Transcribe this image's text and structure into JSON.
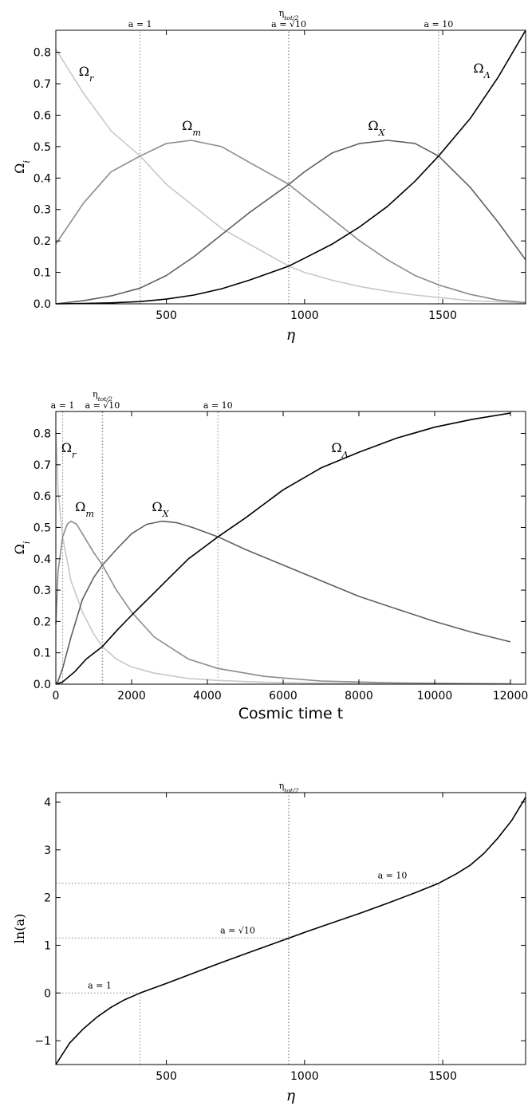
{
  "chart_data": [
    {
      "type": "line",
      "xlabel": "η",
      "ylabel": "Ω_i",
      "xlim": [
        100,
        1800
      ],
      "ylim": [
        0,
        0.87
      ],
      "xticks": [
        500,
        1000,
        1500
      ],
      "yticks": [
        0.0,
        0.1,
        0.2,
        0.3,
        0.4,
        0.5,
        0.6,
        0.7,
        0.8
      ],
      "vlines": [
        {
          "x": 405,
          "label": "a = 1"
        },
        {
          "x": 943,
          "label": "a = √10",
          "label2": "η_tot/2"
        },
        {
          "x": 1485,
          "label": "a = 10"
        }
      ],
      "series": [
        {
          "name": "Ω_r",
          "color": "#c8c8c8",
          "x": [
            100,
            200,
            300,
            405,
            500,
            600,
            700,
            800,
            943,
            1000,
            1100,
            1200,
            1300,
            1400,
            1485,
            1600,
            1700,
            1800
          ],
          "y": [
            0.81,
            0.67,
            0.55,
            0.47,
            0.38,
            0.31,
            0.24,
            0.19,
            0.12,
            0.1,
            0.075,
            0.055,
            0.04,
            0.028,
            0.02,
            0.01,
            0.006,
            0.003
          ]
        },
        {
          "name": "Ω_m",
          "color": "#8c8c8c",
          "x": [
            100,
            200,
            300,
            405,
            500,
            590,
            700,
            800,
            943,
            1000,
            1100,
            1200,
            1300,
            1400,
            1485,
            1600,
            1700,
            1800
          ],
          "y": [
            0.19,
            0.32,
            0.42,
            0.47,
            0.51,
            0.52,
            0.5,
            0.45,
            0.38,
            0.34,
            0.27,
            0.2,
            0.14,
            0.09,
            0.06,
            0.03,
            0.012,
            0.004
          ]
        },
        {
          "name": "Ω_X",
          "color": "#5f5f5f",
          "x": [
            100,
            200,
            300,
            405,
            500,
            600,
            700,
            800,
            943,
            1000,
            1100,
            1200,
            1300,
            1400,
            1485,
            1600,
            1700,
            1800
          ],
          "y": [
            0.0,
            0.01,
            0.025,
            0.05,
            0.09,
            0.15,
            0.22,
            0.29,
            0.38,
            0.42,
            0.48,
            0.51,
            0.52,
            0.51,
            0.47,
            0.37,
            0.26,
            0.14
          ]
        },
        {
          "name": "Ω_Λ",
          "color": "#000000",
          "x": [
            100,
            200,
            300,
            405,
            500,
            600,
            700,
            800,
            943,
            1000,
            1100,
            1200,
            1300,
            1400,
            1485,
            1600,
            1700,
            1800
          ],
          "y": [
            0.0,
            0.001,
            0.003,
            0.007,
            0.015,
            0.028,
            0.048,
            0.075,
            0.12,
            0.145,
            0.19,
            0.245,
            0.31,
            0.39,
            0.47,
            0.59,
            0.72,
            0.87
          ]
        }
      ],
      "labels": [
        "Ω_r",
        "Ω_m",
        "Ω_X",
        "Ω_Λ"
      ]
    },
    {
      "type": "line",
      "xlabel": "Cosmic time t",
      "ylabel": "Ω_i",
      "xlim": [
        0,
        12400
      ],
      "ylim": [
        0,
        0.87
      ],
      "xticks": [
        0,
        2000,
        4000,
        6000,
        8000,
        10000,
        12000
      ],
      "yticks": [
        0.0,
        0.1,
        0.2,
        0.3,
        0.4,
        0.5,
        0.6,
        0.7,
        0.8
      ],
      "vlines": [
        {
          "x": 180,
          "label": "a = 1"
        },
        {
          "x": 1230,
          "label": "a = √10",
          "label2": "η_tot/2"
        },
        {
          "x": 4280,
          "label": "a = 10"
        }
      ],
      "series": [
        {
          "name": "Ω_r",
          "color": "#c8c8c8",
          "x": [
            0,
            60,
            180,
            400,
            700,
            1000,
            1230,
            1600,
            2000,
            2600,
            3500,
            4280,
            5500,
            7000,
            9000,
            12000
          ],
          "y": [
            0.81,
            0.62,
            0.47,
            0.33,
            0.23,
            0.16,
            0.12,
            0.08,
            0.055,
            0.035,
            0.018,
            0.012,
            0.006,
            0.003,
            0.001,
            0.0005
          ]
        },
        {
          "name": "Ω_m",
          "color": "#8c8c8c",
          "x": [
            0,
            60,
            180,
            300,
            400,
            550,
            800,
            1000,
            1230,
            1600,
            2000,
            2600,
            3500,
            4280,
            5500,
            7000,
            9000,
            12000
          ],
          "y": [
            0.19,
            0.36,
            0.47,
            0.51,
            0.52,
            0.51,
            0.46,
            0.42,
            0.38,
            0.3,
            0.23,
            0.15,
            0.08,
            0.05,
            0.025,
            0.01,
            0.004,
            0.001
          ]
        },
        {
          "name": "Ω_X",
          "color": "#5f5f5f",
          "x": [
            0,
            60,
            180,
            400,
            700,
            1000,
            1230,
            1600,
            2000,
            2400,
            2800,
            3200,
            3600,
            4280,
            5000,
            6000,
            7000,
            8000,
            9000,
            10000,
            11000,
            12000
          ],
          "y": [
            0.0,
            0.01,
            0.05,
            0.15,
            0.27,
            0.34,
            0.38,
            0.43,
            0.48,
            0.51,
            0.52,
            0.515,
            0.5,
            0.47,
            0.43,
            0.38,
            0.33,
            0.28,
            0.24,
            0.2,
            0.165,
            0.135
          ]
        },
        {
          "name": "Ω_Λ",
          "color": "#000000",
          "x": [
            0,
            180,
            500,
            800,
            1230,
            1600,
            2000,
            2500,
            3000,
            3500,
            4280,
            5000,
            6000,
            7000,
            8000,
            9000,
            10000,
            11000,
            12000
          ],
          "y": [
            0.0,
            0.007,
            0.04,
            0.08,
            0.12,
            0.17,
            0.22,
            0.28,
            0.34,
            0.4,
            0.47,
            0.53,
            0.62,
            0.69,
            0.74,
            0.785,
            0.82,
            0.845,
            0.865
          ]
        }
      ],
      "labels": [
        "Ω_r",
        "Ω_m",
        "Ω_X",
        "Ω_Λ"
      ]
    },
    {
      "type": "line",
      "xlabel": "η",
      "ylabel": "ln(a)",
      "xlim": [
        100,
        1800
      ],
      "ylim": [
        -1.5,
        4.2
      ],
      "xticks": [
        500,
        1000,
        1500
      ],
      "yticks": [
        -1,
        0,
        1,
        2,
        3,
        4
      ],
      "vlines": [
        {
          "x": 405,
          "ymax": 0.0
        },
        {
          "x": 943,
          "label2": "η_tot/2"
        },
        {
          "x": 1485,
          "ymax": 2.3026
        }
      ],
      "hlines": [
        {
          "y": 0.0,
          "xmax": 405,
          "label": "a = 1"
        },
        {
          "y": 1.1513,
          "xmax": 943,
          "label": "a = √10"
        },
        {
          "y": 2.3026,
          "xmax": 1485,
          "label": "a = 10"
        }
      ],
      "series": [
        {
          "name": "",
          "color": "#000000",
          "x": [
            100,
            150,
            200,
            250,
            300,
            350,
            405,
            500,
            600,
            700,
            800,
            943,
            1000,
            1100,
            1200,
            1300,
            1400,
            1485,
            1550,
            1600,
            1650,
            1700,
            1750,
            1800
          ],
          "y": [
            -1.5,
            -1.05,
            -0.75,
            -0.5,
            -0.3,
            -0.14,
            0.0,
            0.2,
            0.42,
            0.64,
            0.85,
            1.15,
            1.27,
            1.47,
            1.67,
            1.88,
            2.1,
            2.3,
            2.5,
            2.68,
            2.93,
            3.25,
            3.62,
            4.1
          ]
        }
      ]
    }
  ]
}
